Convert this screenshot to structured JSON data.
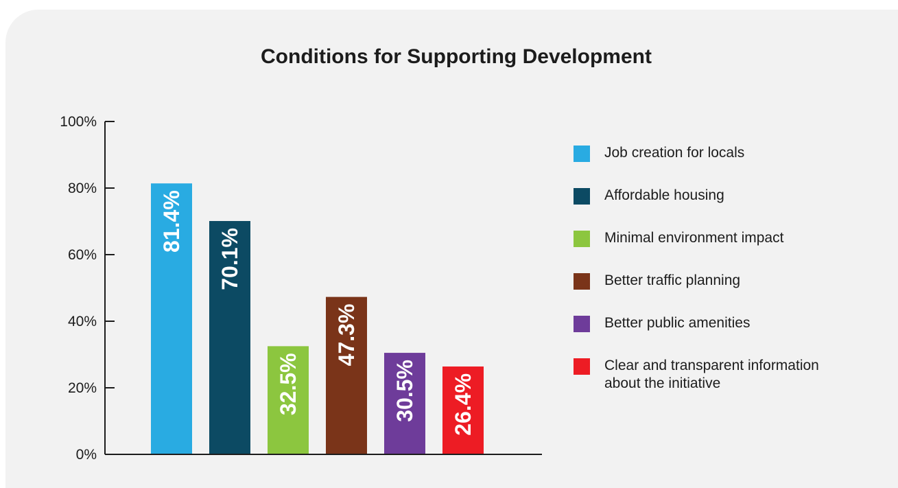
{
  "chart_data": {
    "type": "bar",
    "title": "Conditions for Supporting Development",
    "categories": [
      "Job creation for locals",
      "Affordable housing",
      "Minimal environment impact",
      "Better traffic planning",
      "Better public amenities",
      "Clear and transparent information about the initiative"
    ],
    "values": [
      81.4,
      70.1,
      32.5,
      47.3,
      30.5,
      26.4
    ],
    "data_labels": [
      "81.4%",
      "70.1%",
      "32.5%",
      "47.3%",
      "30.5%",
      "26.4%"
    ],
    "colors": [
      "#29abe2",
      "#0c4a63",
      "#8cc63f",
      "#7a3419",
      "#6e3c9a",
      "#ed1c24"
    ],
    "ylim": [
      0,
      100
    ],
    "yticks": [
      0,
      20,
      40,
      60,
      80,
      100
    ],
    "ytick_labels": [
      "0%",
      "20%",
      "40%",
      "60%",
      "80%",
      "100%"
    ],
    "legend_position": "right",
    "grid": false
  }
}
